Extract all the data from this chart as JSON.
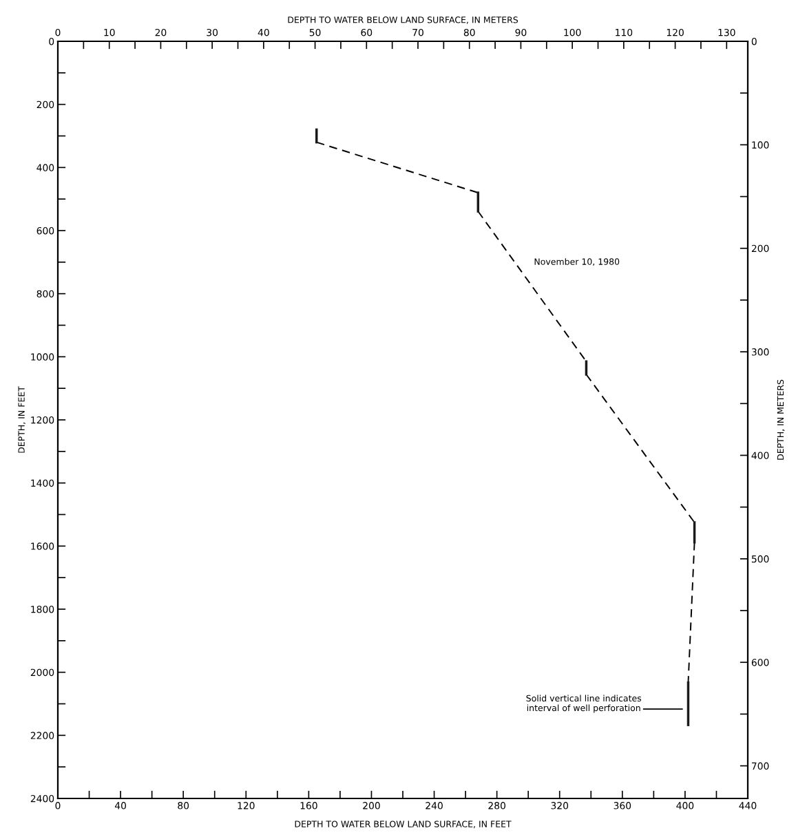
{
  "chart_data": {
    "type": "line",
    "xlabel": "DEPTH TO WATER BELOW LAND SURFACE, IN FEET",
    "x2label": "DEPTH TO WATER BELOW LAND SURFACE, IN METERS",
    "ylabel": "DEPTH, IN FEET",
    "y2label": "DEPTH, IN METERS",
    "xlim": [
      0,
      440
    ],
    "xticks": [
      0,
      {
        "value": 20,
        "label": null
      },
      40,
      {
        "value": 60,
        "label": null
      },
      80,
      {
        "value": 100,
        "label": null
      },
      120,
      {
        "value": 140,
        "label": null
      },
      160,
      {
        "value": 180,
        "label": null
      },
      200,
      {
        "value": 220,
        "label": null
      },
      240,
      {
        "value": 260,
        "label": null
      },
      280,
      {
        "value": 300,
        "label": null
      },
      320,
      {
        "value": 340,
        "label": null
      },
      360,
      {
        "value": 380,
        "label": null
      },
      400,
      {
        "value": 420,
        "label": null
      },
      440
    ],
    "x2lim": [
      0,
      134.11
    ],
    "x2ticks": [
      0,
      {
        "value": 5,
        "label": null
      },
      10,
      {
        "value": 15,
        "label": null
      },
      20,
      {
        "value": 25,
        "label": null
      },
      30,
      {
        "value": 35,
        "label": null
      },
      40,
      {
        "value": 45,
        "label": null
      },
      50,
      {
        "value": 55,
        "label": null
      },
      60,
      {
        "value": 65,
        "label": null
      },
      70,
      {
        "value": 75,
        "label": null
      },
      80,
      {
        "value": 85,
        "label": null
      },
      90,
      {
        "value": 95,
        "label": null
      },
      100,
      {
        "value": 105,
        "label": null
      },
      110,
      {
        "value": 115,
        "label": null
      },
      120,
      {
        "value": 125,
        "label": null
      },
      130
    ],
    "ylim": [
      2400,
      0
    ],
    "yticks": [
      0,
      {
        "value": 100,
        "label": null
      },
      200,
      {
        "value": 300,
        "label": null
      },
      400,
      {
        "value": 500,
        "label": null
      },
      600,
      {
        "value": 700,
        "label": null
      },
      800,
      {
        "value": 900,
        "label": null
      },
      1000,
      {
        "value": 1100,
        "label": null
      },
      1200,
      {
        "value": 1300,
        "label": null
      },
      1400,
      {
        "value": 1500,
        "label": null
      },
      1600,
      {
        "value": 1700,
        "label": null
      },
      1800,
      {
        "value": 1900,
        "label": null
      },
      2000,
      {
        "value": 2100,
        "label": null
      },
      2200,
      {
        "value": 2300,
        "label": null
      },
      2400
    ],
    "y2lim": [
      731.52,
      0
    ],
    "y2ticks": [
      0,
      {
        "value": 50,
        "label": null
      },
      100,
      {
        "value": 150,
        "label": null
      },
      200,
      {
        "value": 250,
        "label": null
      },
      300,
      {
        "value": 350,
        "label": null
      },
      400,
      {
        "value": 450,
        "label": null
      },
      500,
      {
        "value": 550,
        "label": null
      },
      600,
      {
        "value": 650,
        "label": null
      },
      700
    ],
    "grid": false,
    "legend": false,
    "series": [
      {
        "color": "#000000",
        "line_style": "dashed",
        "x": [
          165,
          268,
          null,
          268,
          337,
          null,
          337,
          406,
          null,
          406,
          402
        ],
        "values": [
          320,
          480,
          null,
          539,
          1015,
          null,
          1056,
          1525,
          null,
          1588,
          2033
        ]
      },
      {
        "color": "#1a1a1a",
        "line_style": "solid",
        "x": [
          165,
          165,
          null,
          268,
          268,
          null,
          337,
          337,
          null,
          406,
          406,
          null,
          402,
          402
        ],
        "values": [
          280,
          320,
          null,
          480,
          539,
          null,
          1015,
          1056,
          null,
          1525,
          1588,
          null,
          2033,
          2167
        ]
      }
    ],
    "annotations": [
      "November 10, 1980",
      "Solid vertical line indicates\ninterval of well perforation"
    ]
  }
}
